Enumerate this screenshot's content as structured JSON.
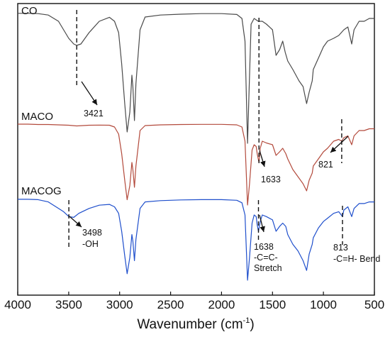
{
  "chart_data": {
    "type": "line",
    "xlabel_main": "Wavenumber (cm",
    "xlabel_sup": "-1",
    "xlabel_close": ")",
    "ylabel": "",
    "xlim": [
      4000,
      500
    ],
    "x_reversed": true,
    "x_ticks": [
      "4000",
      "3500",
      "3000",
      "2500",
      "2000",
      "1500",
      "1000",
      "500"
    ],
    "x_tick_values": [
      4000,
      3500,
      3000,
      2500,
      2000,
      1500,
      1000,
      500
    ],
    "y_ticks": [],
    "grid": false,
    "series": [
      {
        "name": "CO",
        "color": "#4a4a4a",
        "points": [
          [
            4000,
            0.2
          ],
          [
            3900,
            0.2
          ],
          [
            3800,
            0.3
          ],
          [
            3700,
            0.8
          ],
          [
            3600,
            3
          ],
          [
            3500,
            9
          ],
          [
            3450,
            11
          ],
          [
            3421,
            11.5
          ],
          [
            3380,
            11
          ],
          [
            3300,
            7
          ],
          [
            3200,
            3
          ],
          [
            3100,
            1.6
          ],
          [
            3050,
            3
          ],
          [
            3010,
            7
          ],
          [
            2980,
            18
          ],
          [
            2950,
            32
          ],
          [
            2926,
            42
          ],
          [
            2900,
            35
          ],
          [
            2880,
            22
          ],
          [
            2870,
            26
          ],
          [
            2855,
            38
          ],
          [
            2840,
            25
          ],
          [
            2800,
            6
          ],
          [
            2750,
            1.5
          ],
          [
            2600,
            0.8
          ],
          [
            2400,
            0.5
          ],
          [
            2200,
            0.3
          ],
          [
            2000,
            0.3
          ],
          [
            1850,
            0.6
          ],
          [
            1800,
            2
          ],
          [
            1770,
            10
          ],
          [
            1745,
            46
          ],
          [
            1730,
            28
          ],
          [
            1710,
            4
          ],
          [
            1680,
            2
          ],
          [
            1640,
            3
          ],
          [
            1600,
            3
          ],
          [
            1560,
            4
          ],
          [
            1500,
            6
          ],
          [
            1465,
            15
          ],
          [
            1430,
            13
          ],
          [
            1400,
            10
          ],
          [
            1375,
            14
          ],
          [
            1350,
            17
          ],
          [
            1300,
            20
          ],
          [
            1240,
            24
          ],
          [
            1200,
            26
          ],
          [
            1165,
            32
          ],
          [
            1140,
            28
          ],
          [
            1110,
            24
          ],
          [
            1100,
            20
          ],
          [
            1050,
            16
          ],
          [
            1000,
            12
          ],
          [
            960,
            10
          ],
          [
            900,
            9
          ],
          [
            850,
            8
          ],
          [
            800,
            6
          ],
          [
            760,
            5
          ],
          [
            723,
            11
          ],
          [
            700,
            6
          ],
          [
            650,
            3
          ],
          [
            600,
            3
          ],
          [
            550,
            2
          ],
          [
            500,
            2
          ]
        ],
        "label_text": "CO"
      },
      {
        "name": "MACO",
        "color": "#b34a3c",
        "points": [
          [
            4000,
            0.4
          ],
          [
            3900,
            0.4
          ],
          [
            3800,
            0.6
          ],
          [
            3700,
            0.6
          ],
          [
            3600,
            0.8
          ],
          [
            3500,
            1
          ],
          [
            3421,
            1.4
          ],
          [
            3300,
            1
          ],
          [
            3200,
            0.9
          ],
          [
            3100,
            1
          ],
          [
            3050,
            2
          ],
          [
            3010,
            6
          ],
          [
            2980,
            17
          ],
          [
            2950,
            32
          ],
          [
            2926,
            43
          ],
          [
            2900,
            35
          ],
          [
            2880,
            22
          ],
          [
            2870,
            26
          ],
          [
            2855,
            36
          ],
          [
            2840,
            24
          ],
          [
            2800,
            4
          ],
          [
            2750,
            1.2
          ],
          [
            2600,
            0.8
          ],
          [
            2400,
            0.6
          ],
          [
            2200,
            0.5
          ],
          [
            2000,
            0.5
          ],
          [
            1850,
            0.8
          ],
          [
            1800,
            2
          ],
          [
            1770,
            10
          ],
          [
            1745,
            46
          ],
          [
            1725,
            34
          ],
          [
            1700,
            15
          ],
          [
            1680,
            12
          ],
          [
            1660,
            13
          ],
          [
            1650,
            17
          ],
          [
            1633,
            22
          ],
          [
            1620,
            14
          ],
          [
            1600,
            10
          ],
          [
            1560,
            11
          ],
          [
            1500,
            12
          ],
          [
            1465,
            18
          ],
          [
            1430,
            16
          ],
          [
            1400,
            14
          ],
          [
            1370,
            17
          ],
          [
            1350,
            20
          ],
          [
            1300,
            26
          ],
          [
            1250,
            30
          ],
          [
            1200,
            34
          ],
          [
            1165,
            38
          ],
          [
            1140,
            32
          ],
          [
            1110,
            28
          ],
          [
            1100,
            24
          ],
          [
            1050,
            20
          ],
          [
            1000,
            16
          ],
          [
            960,
            14
          ],
          [
            900,
            10
          ],
          [
            850,
            9
          ],
          [
            821,
            10
          ],
          [
            800,
            8
          ],
          [
            760,
            7
          ],
          [
            723,
            12
          ],
          [
            700,
            7
          ],
          [
            650,
            4
          ],
          [
            600,
            4
          ],
          [
            550,
            3
          ],
          [
            500,
            3
          ]
        ],
        "label_text": "MACO"
      },
      {
        "name": "MACOG",
        "color": "#1f4fcc",
        "points": [
          [
            4000,
            0.4
          ],
          [
            3900,
            0.4
          ],
          [
            3800,
            0.6
          ],
          [
            3700,
            2
          ],
          [
            3600,
            6
          ],
          [
            3550,
            8
          ],
          [
            3498,
            11
          ],
          [
            3450,
            11.5
          ],
          [
            3400,
            9
          ],
          [
            3300,
            6
          ],
          [
            3200,
            4
          ],
          [
            3100,
            3.5
          ],
          [
            3050,
            5
          ],
          [
            3010,
            9
          ],
          [
            2980,
            20
          ],
          [
            2950,
            35
          ],
          [
            2926,
            46
          ],
          [
            2900,
            36
          ],
          [
            2880,
            22
          ],
          [
            2870,
            26
          ],
          [
            2855,
            38
          ],
          [
            2840,
            25
          ],
          [
            2800,
            6
          ],
          [
            2750,
            2
          ],
          [
            2600,
            1.2
          ],
          [
            2400,
            0.8
          ],
          [
            2200,
            0.6
          ],
          [
            2000,
            0.6
          ],
          [
            1850,
            1
          ],
          [
            1800,
            2.5
          ],
          [
            1770,
            10
          ],
          [
            1745,
            50
          ],
          [
            1725,
            36
          ],
          [
            1700,
            15
          ],
          [
            1680,
            10
          ],
          [
            1660,
            11
          ],
          [
            1650,
            16
          ],
          [
            1638,
            20
          ],
          [
            1620,
            14
          ],
          [
            1600,
            10
          ],
          [
            1560,
            11
          ],
          [
            1500,
            13
          ],
          [
            1465,
            20
          ],
          [
            1430,
            17
          ],
          [
            1400,
            15
          ],
          [
            1370,
            17
          ],
          [
            1350,
            22
          ],
          [
            1300,
            28
          ],
          [
            1250,
            32
          ],
          [
            1200,
            38
          ],
          [
            1165,
            44
          ],
          [
            1140,
            34
          ],
          [
            1110,
            28
          ],
          [
            1100,
            24
          ],
          [
            1050,
            18
          ],
          [
            1000,
            14
          ],
          [
            960,
            12
          ],
          [
            900,
            9
          ],
          [
            850,
            8
          ],
          [
            813,
            11
          ],
          [
            800,
            7
          ],
          [
            760,
            5
          ],
          [
            723,
            11
          ],
          [
            700,
            6
          ],
          [
            650,
            3
          ],
          [
            600,
            3
          ],
          [
            550,
            2
          ],
          [
            500,
            2
          ]
        ],
        "label_text": "MACOG"
      }
    ],
    "annotations": [
      {
        "id": "a3421",
        "lines": [
          "3421"
        ],
        "x": 3421,
        "target_series": "CO"
      },
      {
        "id": "a1633",
        "lines": [
          "1633"
        ],
        "x": 1633,
        "target_series": "MACO"
      },
      {
        "id": "a821",
        "lines": [
          "821"
        ],
        "x": 821,
        "target_series": "MACO"
      },
      {
        "id": "a3498",
        "lines": [
          "3498",
          "-OH"
        ],
        "x": 3498,
        "target_series": "MACOG"
      },
      {
        "id": "a1638",
        "lines": [
          "1638",
          "-C=C-",
          "Stretch"
        ],
        "x": 1638,
        "target_series": "MACOG"
      },
      {
        "id": "a813",
        "lines": [
          "813",
          "-C=H- Bend"
        ],
        "x": 813,
        "target_series": "MACOG"
      }
    ]
  }
}
